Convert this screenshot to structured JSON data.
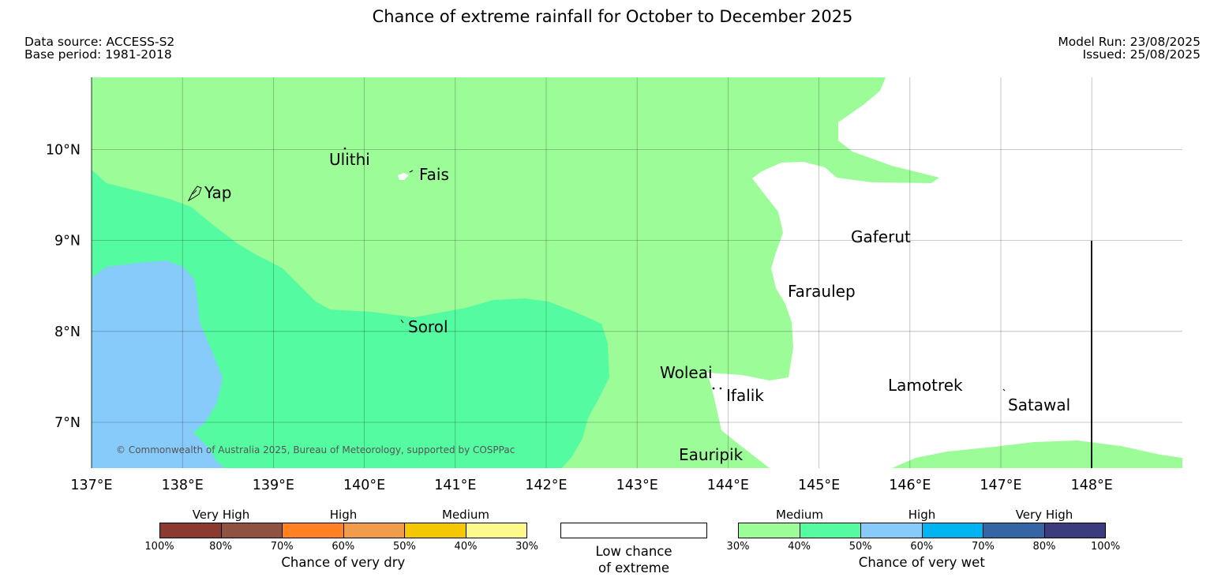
{
  "title": "Chance of extreme rainfall for October to December 2025",
  "meta": {
    "data_source": "Data source: ACCESS-S2",
    "base_period": "Base period: 1981-2018",
    "model_run": "Model Run: 23/08/2025",
    "issued": "Issued: 25/08/2025"
  },
  "map": {
    "lon_range": [
      137.0,
      149.0
    ],
    "lat_range": [
      6.5,
      10.8
    ],
    "lon_ticks": [
      "137°E",
      "138°E",
      "139°E",
      "140°E",
      "141°E",
      "142°E",
      "143°E",
      "144°E",
      "145°E",
      "146°E",
      "147°E",
      "148°E"
    ],
    "lat_ticks": [
      "7°N",
      "8°N",
      "9°N",
      "10°N"
    ],
    "grid": true,
    "copyright": "© Commonwealth of Australia 2025, Bureau of Meteorology, supported by COSPPac",
    "places": [
      "Ulithi",
      "Fais",
      "Yap",
      "Gaferut",
      "Faraulep",
      "Sorol",
      "Woleai",
      "Ifalik",
      "Lamotrek",
      "Satawal",
      "Eauripik"
    ],
    "colors": {
      "wet_medium_30_40": "#9cfc98",
      "wet_medium_40_50": "#55fba1",
      "wet_high_50_60": "#87cbfa",
      "low_chance": "#ffffff"
    }
  },
  "legend_dry": {
    "categories": [
      "Very High",
      "High",
      "Medium"
    ],
    "ticks": [
      "100%",
      "80%",
      "70%",
      "60%",
      "50%",
      "40%",
      "30%"
    ],
    "colors": [
      "#8b3a2f",
      "#8f5140",
      "#fe8124",
      "#f09c4b",
      "#f4c800",
      "#fef98b"
    ],
    "label": "Chance of very dry"
  },
  "legend_low": {
    "line1": "Low chance",
    "line2": "of extreme",
    "color": "#ffffff"
  },
  "legend_wet": {
    "categories": [
      "Medium",
      "High",
      "Very High"
    ],
    "ticks": [
      "30%",
      "40%",
      "50%",
      "60%",
      "70%",
      "80%",
      "100%"
    ],
    "colors": [
      "#9cfc98",
      "#55fba1",
      "#87cbfa",
      "#00b4f0",
      "#3465a4",
      "#3b3b7e"
    ],
    "label": "Chance of very wet"
  }
}
